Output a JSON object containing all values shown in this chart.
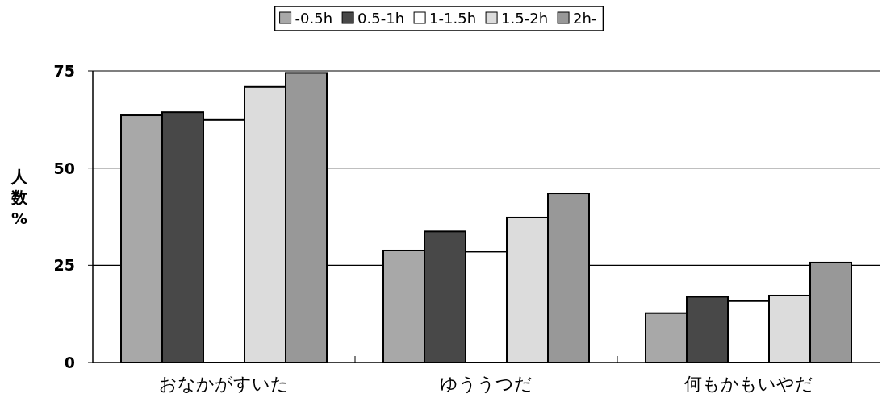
{
  "chart_data": {
    "type": "bar",
    "ylabel": "人数%",
    "categories": [
      "おなかがすいた",
      "ゆううつだ",
      "何もかもいやだ"
    ],
    "series": [
      {
        "name": "-0.5h",
        "color": "#a8a8a8",
        "values": [
          63.6,
          28.8,
          12.7
        ]
      },
      {
        "name": "0.5-1h",
        "color": "#484848",
        "values": [
          64.4,
          33.7,
          16.9
        ]
      },
      {
        "name": "1-1.5h",
        "color": "#ffffff",
        "values": [
          62.4,
          28.5,
          15.8
        ]
      },
      {
        "name": "1.5-2h",
        "color": "#dcdcdc",
        "values": [
          70.9,
          37.3,
          17.2
        ]
      },
      {
        "name": "2h-",
        "color": "#989898",
        "values": [
          74.5,
          43.5,
          25.7
        ]
      }
    ],
    "ylim": [
      0,
      75
    ],
    "yticks": [
      0,
      25,
      50,
      75
    ],
    "grid": "y",
    "legend": "top"
  }
}
